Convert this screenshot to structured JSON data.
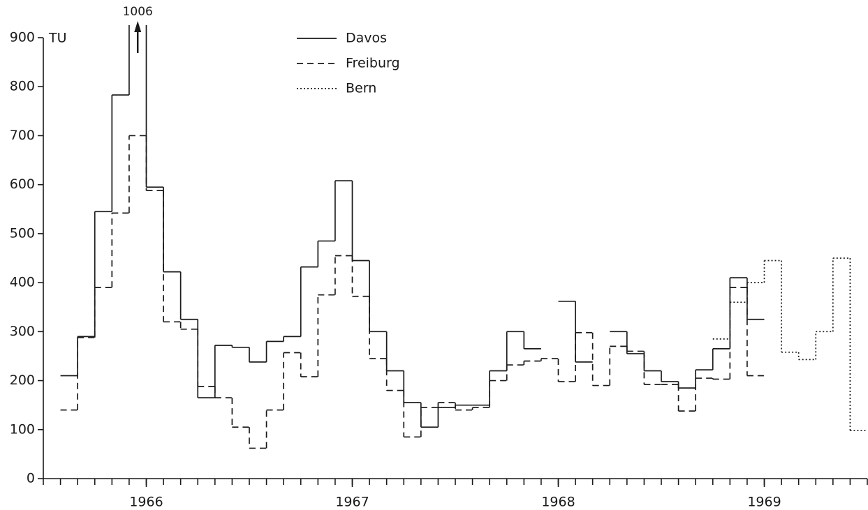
{
  "chart_data": {
    "type": "step",
    "y_label": "TU",
    "x": [
      0,
      1,
      2,
      3,
      4,
      5,
      6,
      7,
      8,
      9,
      10,
      11,
      12,
      13,
      14,
      15,
      16,
      17,
      18,
      19,
      20,
      21,
      22,
      23,
      24,
      25,
      26,
      27,
      28,
      29,
      30,
      31,
      32,
      33,
      34,
      35,
      36,
      37,
      38,
      39,
      40,
      41,
      42,
      43,
      44,
      45,
      46,
      47
    ],
    "xlim": [
      0,
      48
    ],
    "xticks": [
      {
        "value": 6,
        "label": "1966"
      },
      {
        "value": 18,
        "label": "1967"
      },
      {
        "value": 30,
        "label": "1968"
      },
      {
        "value": 42,
        "label": "1969"
      }
    ],
    "x_minor_ticks": [
      0,
      1,
      2,
      3,
      4,
      5,
      6,
      7,
      8,
      9,
      10,
      11,
      12,
      13,
      14,
      15,
      16,
      17,
      18,
      19,
      20,
      21,
      22,
      23,
      24,
      25,
      26,
      27,
      28,
      29,
      30,
      31,
      32,
      33,
      34,
      35,
      36,
      37,
      38,
      39,
      40,
      41,
      42,
      43,
      44,
      45,
      46,
      47,
      48
    ],
    "ylim": [
      0,
      900
    ],
    "yticks": [
      0,
      100,
      200,
      300,
      400,
      500,
      600,
      700,
      800,
      900
    ],
    "series": [
      {
        "name": "Davos",
        "color": "#1a1a1a",
        "dash": "none",
        "values": [
          null,
          210,
          290,
          545,
          783,
          1006,
          595,
          422,
          325,
          165,
          272,
          268,
          238,
          280,
          290,
          432,
          485,
          608,
          445,
          300,
          220,
          155,
          105,
          145,
          150,
          150,
          220,
          300,
          265,
          null,
          362,
          238,
          null,
          300,
          255,
          220,
          198,
          185,
          222,
          265,
          410,
          325,
          null,
          null,
          null,
          null,
          null,
          null
        ]
      },
      {
        "name": "Freiburg",
        "color": "#1a1a1a",
        "dash": "9,6",
        "values": [
          null,
          140,
          288,
          390,
          542,
          700,
          588,
          320,
          305,
          188,
          165,
          105,
          62,
          140,
          257,
          208,
          375,
          455,
          372,
          245,
          180,
          85,
          145,
          155,
          140,
          145,
          200,
          232,
          240,
          245,
          198,
          298,
          190,
          270,
          260,
          192,
          192,
          138,
          205,
          203,
          390,
          210,
          null,
          null,
          null,
          null,
          null,
          null
        ]
      },
      {
        "name": "Bern",
        "color": "#1a1a1a",
        "dash": "2,3",
        "values": [
          null,
          null,
          null,
          null,
          null,
          null,
          null,
          null,
          null,
          null,
          null,
          null,
          null,
          null,
          null,
          null,
          null,
          null,
          null,
          null,
          null,
          null,
          null,
          null,
          null,
          null,
          null,
          null,
          null,
          null,
          null,
          null,
          null,
          null,
          null,
          null,
          null,
          null,
          null,
          285,
          360,
          400,
          445,
          258,
          243,
          300,
          450,
          98
        ]
      }
    ]
  }
}
